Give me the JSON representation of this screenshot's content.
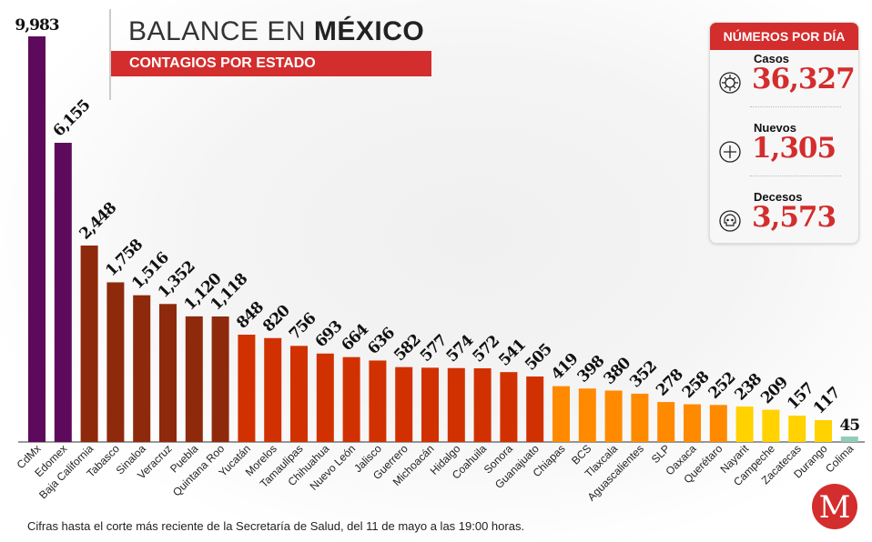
{
  "header": {
    "title_light": "BALANCE EN",
    "title_bold": "MÉXICO",
    "subtitle": "CONTAGIOS POR ESTADO"
  },
  "panel": {
    "title": "NÚMEROS POR DÍA",
    "stats": [
      {
        "label": "Casos",
        "value": "36,327",
        "icon": "virus-icon"
      },
      {
        "label": "Nuevos",
        "value": "1,305",
        "icon": "plus-icon"
      },
      {
        "label": "Decesos",
        "value": "3,573",
        "icon": "skull-icon"
      }
    ]
  },
  "footer": "Cifras hasta el corte más reciente de la Secretaría de Salud, del 11 de mayo a las 19:00 horas.",
  "logo": "M",
  "chart_data": {
    "type": "bar",
    "title": "Contagios por estado",
    "categories": [
      "CdMx",
      "Edomex",
      "Baja California",
      "Tabasco",
      "Sinaloa",
      "Veracruz",
      "Puebla",
      "Quintana Roo",
      "Yucatán",
      "Morelos",
      "Tamaulipas",
      "Chihuahua",
      "Nuevo León",
      "Jalisco",
      "Guerrero",
      "Michoacán",
      "Hidalgo",
      "Coahuila",
      "Sonora",
      "Guanajuato",
      "Chiapas",
      "BCS",
      "Tlaxcala",
      "Aguascalientes",
      "SLP",
      "Oaxaca",
      "Querétaro",
      "Nayarit",
      "Campeche",
      "Zacatecas",
      "Durango",
      "Colima"
    ],
    "values": [
      9983,
      6155,
      2448,
      1758,
      1516,
      1352,
      1120,
      1118,
      848,
      820,
      756,
      693,
      664,
      636,
      582,
      577,
      574,
      572,
      541,
      505,
      419,
      398,
      380,
      352,
      278,
      258,
      252,
      238,
      209,
      157,
      117,
      45
    ],
    "labels": [
      "9,983",
      "6,155",
      "2,448",
      "1,758",
      "1,516",
      "1,352",
      "1,120",
      "1,118",
      "848",
      "820",
      "756",
      "693",
      "664",
      "636",
      "582",
      "577",
      "574",
      "572",
      "541",
      "505",
      "419",
      "398",
      "380",
      "352",
      "278",
      "258",
      "252",
      "238",
      "209",
      "157",
      "117",
      "45"
    ],
    "color_groups": [
      {
        "color": "#5e0a5c",
        "count": 2
      },
      {
        "color": "#8e2a0b",
        "count": 6
      },
      {
        "color": "#d13100",
        "count": 12
      },
      {
        "color": "#ff8a00",
        "count": 7
      },
      {
        "color": "#ffd200",
        "count": 4
      },
      {
        "color": "#8fcdb8",
        "count": 1
      }
    ],
    "xlabel": "",
    "ylabel": ""
  }
}
